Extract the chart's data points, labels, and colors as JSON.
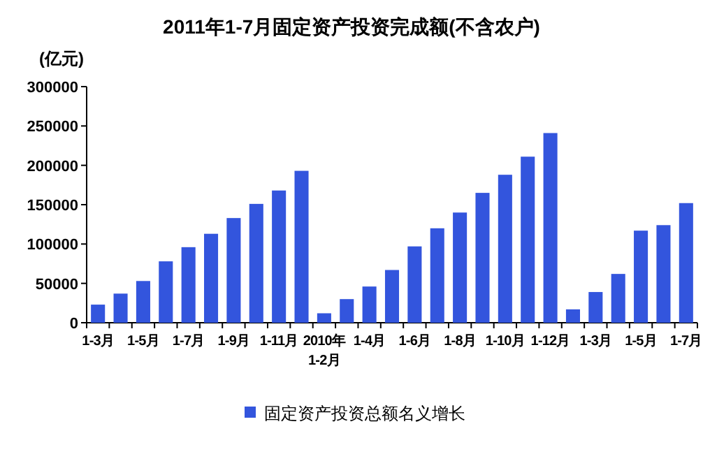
{
  "chart_data": {
    "type": "bar",
    "title": "2011年1-7月固定资产投资完成额(不含农户)",
    "ylabel": "(亿元)",
    "categories": [
      "1-3月",
      null,
      "1-5月",
      null,
      "1-7月",
      null,
      "1-9月",
      null,
      "1-11月",
      null,
      "2010年\n1-2月",
      null,
      "1-4月",
      null,
      "1-6月",
      null,
      "1-8月",
      null,
      "1-10月",
      null,
      "1-12月",
      null,
      "1-3月",
      null,
      "1-5月",
      null,
      "1-7月"
    ],
    "series": [
      {
        "name": "固定资产投资总额名义增长",
        "color": "#3355dd",
        "values": [
          23000,
          37000,
          53000,
          78000,
          96000,
          113000,
          133000,
          151000,
          168000,
          193000,
          12000,
          30000,
          46000,
          67000,
          97000,
          120000,
          140000,
          165000,
          188000,
          211000,
          241000,
          17000,
          39000,
          62000,
          117000,
          124000,
          152000
        ]
      }
    ],
    "ylim": [
      0,
      300000
    ],
    "yticks": [
      0,
      50000,
      100000,
      150000,
      200000,
      250000,
      300000
    ],
    "legend": "bottom",
    "grid": false
  }
}
